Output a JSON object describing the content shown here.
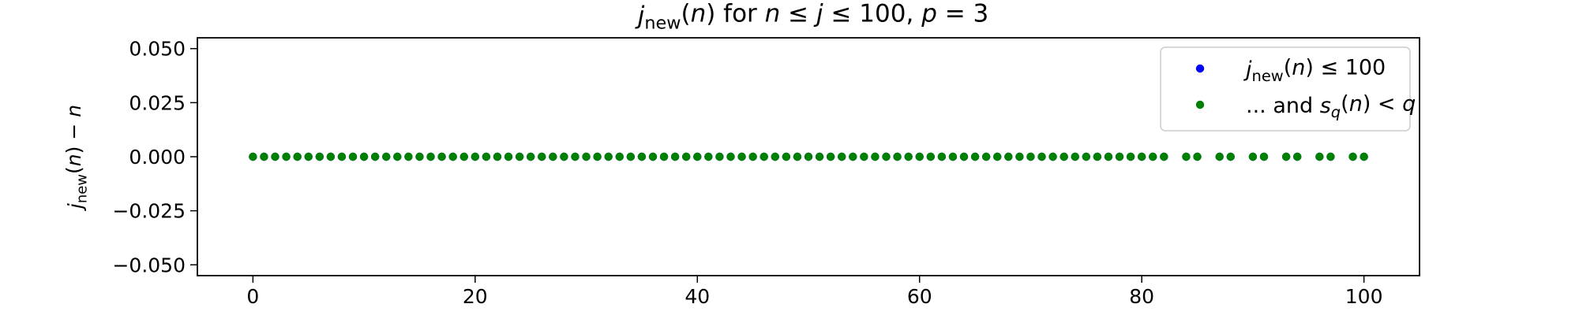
{
  "chart_data": {
    "type": "scatter",
    "title": {
      "segments": [
        {
          "text": "j",
          "style": "italic"
        },
        {
          "text": "new",
          "style": "sub"
        },
        {
          "text": "(",
          "style": "normal"
        },
        {
          "text": "n",
          "style": "italic"
        },
        {
          "text": ") for ",
          "style": "normal"
        },
        {
          "text": "n",
          "style": "italic"
        },
        {
          "text": " ≤ ",
          "style": "normal"
        },
        {
          "text": "j",
          "style": "italic"
        },
        {
          "text": " ≤ 100, ",
          "style": "normal"
        },
        {
          "text": "p",
          "style": "italic"
        },
        {
          "text": " = 3",
          "style": "normal"
        }
      ]
    },
    "xlabel": "",
    "ylabel": {
      "segments": [
        {
          "text": "j",
          "style": "italic"
        },
        {
          "text": "new",
          "style": "sub"
        },
        {
          "text": "(",
          "style": "normal"
        },
        {
          "text": "n",
          "style": "italic"
        },
        {
          "text": ") − ",
          "style": "normal"
        },
        {
          "text": "n",
          "style": "italic"
        }
      ]
    },
    "xlim": [
      -5,
      105
    ],
    "ylim": [
      -0.055,
      0.055
    ],
    "x_ticks": [
      0,
      20,
      40,
      60,
      80,
      100
    ],
    "x_tick_labels": [
      "0",
      "20",
      "40",
      "60",
      "80",
      "100"
    ],
    "y_ticks": [
      0.05,
      0.025,
      0,
      -0.025,
      -0.05
    ],
    "y_tick_labels": [
      "0.050",
      "0.025",
      "0.000",
      "−0.025",
      "−0.050"
    ],
    "grid": false,
    "legend_position": "top-right",
    "series": [
      {
        "name": {
          "segments": [
            {
              "text": "j",
              "style": "italic"
            },
            {
              "text": "new",
              "style": "sub"
            },
            {
              "text": "(",
              "style": "normal"
            },
            {
              "text": "n",
              "style": "italic"
            },
            {
              "text": ") ≤ 100",
              "style": "normal"
            }
          ]
        },
        "color": "#0000ff",
        "x": [
          0,
          1,
          2,
          3,
          4,
          5,
          6,
          7,
          8,
          9,
          10,
          11,
          12,
          13,
          14,
          15,
          16,
          17,
          18,
          19,
          20,
          21,
          22,
          23,
          24,
          25,
          26,
          27,
          28,
          29,
          30,
          31,
          32,
          33,
          34,
          35,
          36,
          37,
          38,
          39,
          40,
          41,
          42,
          43,
          44,
          45,
          46,
          47,
          48,
          49,
          50,
          51,
          52,
          53,
          54,
          55,
          56,
          57,
          58,
          59,
          60,
          61,
          62,
          63,
          64,
          65,
          66,
          67,
          68,
          69,
          70,
          71,
          72,
          73,
          74,
          75,
          76,
          77,
          78,
          79,
          80,
          81,
          82,
          84,
          85,
          87,
          88,
          90,
          91,
          93,
          94,
          96,
          97,
          99,
          100
        ],
        "y": [
          0,
          0,
          0,
          0,
          0,
          0,
          0,
          0,
          0,
          0,
          0,
          0,
          0,
          0,
          0,
          0,
          0,
          0,
          0,
          0,
          0,
          0,
          0,
          0,
          0,
          0,
          0,
          0,
          0,
          0,
          0,
          0,
          0,
          0,
          0,
          0,
          0,
          0,
          0,
          0,
          0,
          0,
          0,
          0,
          0,
          0,
          0,
          0,
          0,
          0,
          0,
          0,
          0,
          0,
          0,
          0,
          0,
          0,
          0,
          0,
          0,
          0,
          0,
          0,
          0,
          0,
          0,
          0,
          0,
          0,
          0,
          0,
          0,
          0,
          0,
          0,
          0,
          0,
          0,
          0,
          0,
          0,
          0,
          0,
          0,
          0,
          0,
          0,
          0,
          0,
          0,
          0,
          0,
          0,
          0
        ]
      },
      {
        "name": {
          "segments": [
            {
              "text": "... and ",
              "style": "normal"
            },
            {
              "text": "s",
              "style": "italic"
            },
            {
              "text": "q",
              "style": "sub-italic"
            },
            {
              "text": "(",
              "style": "normal"
            },
            {
              "text": "n",
              "style": "italic"
            },
            {
              "text": ") < ",
              "style": "normal"
            },
            {
              "text": "q",
              "style": "italic"
            }
          ]
        },
        "color": "#008000",
        "x": [
          0,
          1,
          2,
          3,
          4,
          5,
          6,
          7,
          8,
          9,
          10,
          11,
          12,
          13,
          14,
          15,
          16,
          17,
          18,
          19,
          20,
          21,
          22,
          23,
          24,
          25,
          26,
          27,
          28,
          29,
          30,
          31,
          32,
          33,
          34,
          35,
          36,
          37,
          38,
          39,
          40,
          41,
          42,
          43,
          44,
          45,
          46,
          47,
          48,
          49,
          50,
          51,
          52,
          53,
          54,
          55,
          56,
          57,
          58,
          59,
          60,
          61,
          62,
          63,
          64,
          65,
          66,
          67,
          68,
          69,
          70,
          71,
          72,
          73,
          74,
          75,
          76,
          77,
          78,
          79,
          80,
          81,
          82,
          84,
          85,
          87,
          88,
          90,
          91,
          93,
          94,
          96,
          97,
          99,
          100
        ],
        "y": [
          0,
          0,
          0,
          0,
          0,
          0,
          0,
          0,
          0,
          0,
          0,
          0,
          0,
          0,
          0,
          0,
          0,
          0,
          0,
          0,
          0,
          0,
          0,
          0,
          0,
          0,
          0,
          0,
          0,
          0,
          0,
          0,
          0,
          0,
          0,
          0,
          0,
          0,
          0,
          0,
          0,
          0,
          0,
          0,
          0,
          0,
          0,
          0,
          0,
          0,
          0,
          0,
          0,
          0,
          0,
          0,
          0,
          0,
          0,
          0,
          0,
          0,
          0,
          0,
          0,
          0,
          0,
          0,
          0,
          0,
          0,
          0,
          0,
          0,
          0,
          0,
          0,
          0,
          0,
          0,
          0,
          0,
          0,
          0,
          0,
          0,
          0,
          0,
          0,
          0,
          0,
          0,
          0,
          0,
          0
        ]
      }
    ]
  }
}
